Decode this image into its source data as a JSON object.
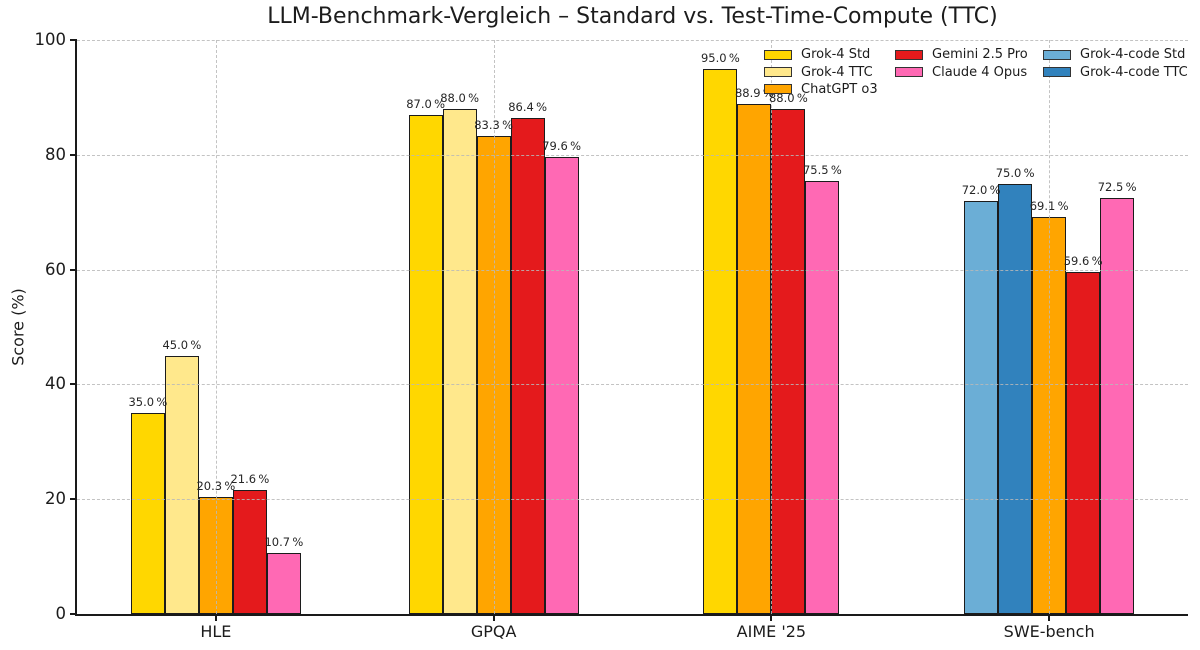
{
  "chart_data": {
    "type": "bar",
    "title": "LLM-Benchmark-Vergleich – Standard vs. Test-Time-Compute (TTC)",
    "ylabel": "Score (%)",
    "ylim": [
      0,
      100
    ],
    "yticks": [
      0,
      20,
      40,
      60,
      80,
      100
    ],
    "grid": {
      "style": "dashed",
      "horizontal": true,
      "vertical_at_category_centers": true
    },
    "value_label_suffix": " %",
    "categories": [
      "HLE",
      "GPQA",
      "AIME '25",
      "SWE-bench"
    ],
    "series_colors": {
      "Grok-4 Std": "#FFD700",
      "Grok-4 TTC": "#FFE88C",
      "ChatGPT o3": "#FFA500",
      "Gemini 2.5 Pro": "#E41A1C",
      "Claude 4 Opus": "#FF69B4",
      "Grok-4-code Std": "#6BAED6",
      "Grok-4-code TTC": "#3182BD"
    },
    "legend_columns": [
      [
        "Grok-4 Std",
        "Grok-4 TTC",
        "ChatGPT o3"
      ],
      [
        "Gemini 2.5 Pro",
        "Claude 4 Opus"
      ],
      [
        "Grok-4-code Std",
        "Grok-4-code TTC"
      ]
    ],
    "groups": [
      {
        "category": "HLE",
        "bars": [
          {
            "series": "Grok-4 Std",
            "value": 35.0
          },
          {
            "series": "Grok-4 TTC",
            "value": 45.0
          },
          {
            "series": "ChatGPT o3",
            "value": 20.3
          },
          {
            "series": "Gemini 2.5 Pro",
            "value": 21.6
          },
          {
            "series": "Claude 4 Opus",
            "value": 10.7
          }
        ]
      },
      {
        "category": "GPQA",
        "bars": [
          {
            "series": "Grok-4 Std",
            "value": 87.0
          },
          {
            "series": "Grok-4 TTC",
            "value": 88.0
          },
          {
            "series": "ChatGPT o3",
            "value": 83.3
          },
          {
            "series": "Gemini 2.5 Pro",
            "value": 86.4
          },
          {
            "series": "Claude 4 Opus",
            "value": 79.6
          }
        ]
      },
      {
        "category": "AIME '25",
        "bars": [
          {
            "series": "Grok-4 Std",
            "value": 95.0
          },
          {
            "series": "ChatGPT o3",
            "value": 88.9
          },
          {
            "series": "Gemini 2.5 Pro",
            "value": 88.0
          },
          {
            "series": "Claude 4 Opus",
            "value": 75.5
          }
        ]
      },
      {
        "category": "SWE-bench",
        "bars": [
          {
            "series": "Grok-4-code Std",
            "value": 72.0
          },
          {
            "series": "Grok-4-code TTC",
            "value": 75.0
          },
          {
            "series": "ChatGPT o3",
            "value": 69.1
          },
          {
            "series": "Gemini 2.5 Pro",
            "value": 59.6
          },
          {
            "series": "Claude 4 Opus",
            "value": 72.5
          }
        ]
      }
    ]
  }
}
